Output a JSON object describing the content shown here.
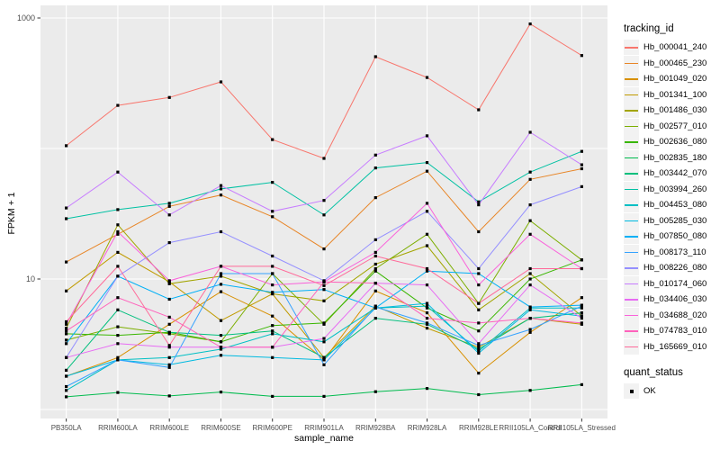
{
  "chart_data": {
    "type": "line",
    "title": "",
    "xlabel": "sample_name",
    "ylabel": "FPKM + 1",
    "y_scale": "log10",
    "ylim": [
      1,
      1100
    ],
    "grid": true,
    "panel_bg": "#EBEBEB",
    "gridline_color": "#FFFFFF",
    "point_marker": {
      "shape": "square",
      "color": "#000000"
    },
    "legend_position": "right",
    "legend_title": "tracking_id",
    "quant_legend": {
      "title": "quant_status",
      "items": [
        {
          "label": "OK",
          "marker": "black-square"
        }
      ]
    },
    "y_tick_labels": [
      {
        "label": "1000",
        "value": 1000
      },
      {
        "label": "10",
        "value": 10
      }
    ],
    "y_gridlines": [
      1,
      10,
      100,
      1000
    ],
    "categories": [
      "PB350LA",
      "RRIM600LA",
      "RRIM600LE",
      "RRIM600SE",
      "RRIM600PE",
      "RRIM901LA",
      "RRIM928BA",
      "RRIM928LA",
      "RRIM928LE",
      "RRII105LA_Control",
      "RRII105LA_Stressed"
    ],
    "series": [
      {
        "name": "Hb_000041_240",
        "color": "#F8766D",
        "values": [
          105,
          214,
          246,
          324,
          117,
          84,
          505,
          350,
          198,
          900,
          516
        ]
      },
      {
        "name": "Hb_000465_230",
        "color": "#E88526",
        "values": [
          13.5,
          22,
          36,
          44,
          30,
          17,
          42,
          67,
          23,
          58,
          70
        ]
      },
      {
        "name": "Hb_001049_020",
        "color": "#D89000",
        "values": [
          1.8,
          2.5,
          4.5,
          8.0,
          5.2,
          2.4,
          8.1,
          5.5,
          1.9,
          3.9,
          7.2
        ]
      },
      {
        "name": "Hb_001341_100",
        "color": "#C09B00",
        "values": [
          8.1,
          16,
          9.5,
          4.8,
          7.7,
          2.5,
          6.2,
          4.2,
          3.0,
          5.0,
          4.5
        ]
      },
      {
        "name": "Hb_001486_030",
        "color": "#A3A500",
        "values": [
          4.2,
          26,
          9.2,
          10.5,
          7.7,
          6.8,
          13,
          18,
          5.8,
          11,
          5.2
        ]
      },
      {
        "name": "Hb_002577_010",
        "color": "#7CAE00",
        "values": [
          3.4,
          4.3,
          3.8,
          3.3,
          11,
          4.5,
          12,
          22,
          6.5,
          28,
          14
        ]
      },
      {
        "name": "Hb_002636_080",
        "color": "#39B600",
        "values": [
          3.8,
          3.7,
          3.9,
          3.3,
          4.4,
          4.6,
          11.5,
          6.0,
          4.0,
          10,
          14
        ]
      },
      {
        "name": "Hb_002835_180",
        "color": "#00BB4E",
        "values": [
          1.25,
          1.35,
          1.27,
          1.36,
          1.26,
          1.26,
          1.37,
          1.45,
          1.3,
          1.4,
          1.55
        ]
      },
      {
        "name": "Hb_003442_070",
        "color": "#00BF7D",
        "values": [
          2.0,
          5.8,
          3.9,
          3.7,
          4.0,
          2.5,
          5.0,
          4.5,
          2.9,
          5.0,
          5.5
        ]
      },
      {
        "name": "Hb_003994_260",
        "color": "#00C1A3",
        "values": [
          29,
          34,
          38,
          49,
          55,
          31,
          71,
          78,
          39,
          66,
          95
        ]
      },
      {
        "name": "Hb_004453_080",
        "color": "#00BFC4",
        "values": [
          1.4,
          2.4,
          2.5,
          2.9,
          3.8,
          3.3,
          6.0,
          6.2,
          2.8,
          6.0,
          6.0
        ]
      },
      {
        "name": "Hb_005285_030",
        "color": "#00BAE0",
        "values": [
          1.8,
          2.4,
          2.2,
          2.6,
          2.5,
          2.4,
          6.0,
          6.5,
          2.7,
          5.8,
          5.2
        ]
      },
      {
        "name": "Hb_007850_080",
        "color": "#00B0F6",
        "values": [
          3.2,
          10.5,
          7.0,
          9.1,
          7.9,
          8.3,
          6.0,
          11.5,
          11,
          6.1,
          6.3
        ]
      },
      {
        "name": "Hb_008173_110",
        "color": "#35A2FF",
        "values": [
          1.5,
          2.4,
          2.1,
          11,
          11,
          2.2,
          6.1,
          4.6,
          3.1,
          4.1,
          6.2
        ]
      },
      {
        "name": "Hb_008226_080",
        "color": "#9590FF",
        "values": [
          2.5,
          10.5,
          19,
          23,
          15,
          9.7,
          20,
          33,
          12,
          37,
          51
        ]
      },
      {
        "name": "Hb_010174_060",
        "color": "#C77CFF",
        "values": [
          35,
          66,
          31,
          52,
          33,
          40,
          89,
          125,
          37,
          133,
          75
        ]
      },
      {
        "name": "Hb_034406_030",
        "color": "#E76BF3",
        "values": [
          2.5,
          3.2,
          3.0,
          3.0,
          3.0,
          3.5,
          9.3,
          9.0,
          3.2,
          9.0,
          5.0
        ]
      },
      {
        "name": "Hb_034688_020",
        "color": "#FA62DB",
        "values": [
          4.5,
          23,
          9.7,
          12.5,
          9.0,
          9.5,
          16,
          38,
          9.0,
          22,
          12
        ]
      },
      {
        "name": "Hb_074783_010",
        "color": "#FF62BC",
        "values": [
          4.0,
          7.2,
          5.1,
          3.0,
          3.0,
          9.5,
          9.3,
          5.0,
          4.6,
          5.0,
          4.6
        ]
      },
      {
        "name": "Hb_165669_010",
        "color": "#FF6A9A",
        "values": [
          4.7,
          12.5,
          3.1,
          12.5,
          12.5,
          8.9,
          15,
          12,
          6.5,
          12,
          12
        ]
      }
    ]
  }
}
